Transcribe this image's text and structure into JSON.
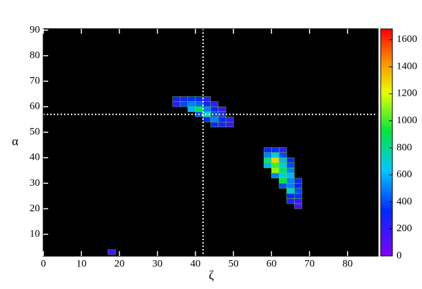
{
  "chart_data": {
    "type": "heatmap",
    "x_label": "ζ",
    "y_label": "α",
    "xlim": [
      0,
      88
    ],
    "xticks": [
      0,
      10,
      20,
      30,
      40,
      50,
      60,
      70,
      80
    ],
    "ylim": [
      1.5,
      90.5
    ],
    "yticks": [
      10,
      20,
      30,
      40,
      50,
      60,
      70,
      80,
      90
    ],
    "zlim": [
      0,
      1680
    ],
    "zticks": [
      0,
      200,
      400,
      600,
      800,
      1000,
      1200,
      1400,
      1600
    ],
    "crosshair": {
      "x": 42,
      "y": 57
    },
    "cells": {
      "x": [
        35,
        37,
        39,
        41,
        43,
        35,
        37,
        39,
        41,
        43,
        45,
        39,
        41,
        43,
        45,
        47,
        41,
        43,
        45,
        47,
        43,
        45,
        47,
        49,
        45,
        47,
        49,
        59,
        61,
        63,
        59,
        61,
        63,
        59,
        61,
        63,
        65,
        59,
        61,
        63,
        65,
        61,
        63,
        65,
        61,
        63,
        65,
        63,
        65,
        67,
        63,
        65,
        67,
        65,
        67,
        65,
        67,
        65,
        67,
        67,
        18
      ],
      "y": [
        63,
        63,
        63,
        63,
        63,
        61,
        61,
        61,
        61,
        61,
        61,
        59,
        59,
        59,
        59,
        59,
        57,
        57,
        57,
        57,
        55,
        55,
        55,
        55,
        53,
        53,
        53,
        43,
        43,
        43,
        41,
        41,
        41,
        39,
        39,
        39,
        39,
        37,
        37,
        37,
        37,
        35,
        35,
        35,
        33,
        33,
        33,
        31,
        31,
        31,
        29,
        29,
        29,
        27,
        27,
        25,
        25,
        23,
        23,
        21,
        3
      ],
      "values": [
        300,
        250,
        350,
        300,
        200,
        200,
        400,
        500,
        450,
        300,
        200,
        600,
        900,
        500,
        300,
        200,
        400,
        700,
        400,
        250,
        300,
        500,
        350,
        200,
        300,
        250,
        200,
        300,
        350,
        200,
        500,
        700,
        400,
        800,
        1300,
        600,
        300,
        600,
        1000,
        700,
        400,
        1100,
        800,
        500,
        500,
        700,
        600,
        900,
        500,
        300,
        400,
        500,
        300,
        700,
        400,
        300,
        350,
        250,
        200,
        150,
        150
      ]
    }
  }
}
